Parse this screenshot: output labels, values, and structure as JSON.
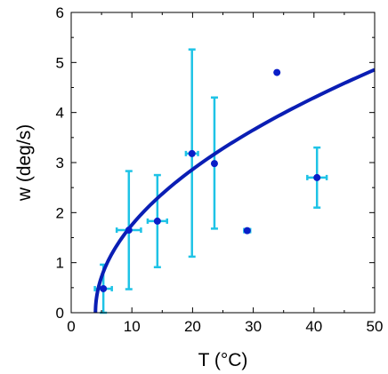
{
  "chart_data": {
    "type": "scatter",
    "xlabel": "T (°C)",
    "ylabel": "w (deg/s)",
    "xlim": [
      0,
      50
    ],
    "ylim": [
      0,
      6
    ],
    "x_ticks": [
      0,
      10,
      20,
      30,
      40,
      50
    ],
    "y_ticks": [
      0,
      1,
      2,
      3,
      4,
      5,
      6
    ],
    "grid": false,
    "legend": "none",
    "points": [
      {
        "x": 5.3,
        "y": 0.48,
        "x_err": 1.4,
        "y_err_low": 0.48,
        "y_err_high": 0.48
      },
      {
        "x": 9.5,
        "y": 1.65,
        "x_err": 2.0,
        "y_err_low": 1.18,
        "y_err_high": 1.18
      },
      {
        "x": 14.2,
        "y": 1.83,
        "x_err": 1.6,
        "y_err_low": 0.92,
        "y_err_high": 0.92
      },
      {
        "x": 19.9,
        "y": 3.18,
        "x_err": 1.0,
        "y_err_low": 2.06,
        "y_err_high": 2.08
      },
      {
        "x": 23.6,
        "y": 2.98,
        "x_err": 0,
        "y_err_low": 1.3,
        "y_err_high": 1.32
      },
      {
        "x": 29.0,
        "y": 1.64,
        "x_err": 0.5,
        "y_err_low": 0.03,
        "y_err_high": 0.03
      },
      {
        "x": 33.9,
        "y": 4.8,
        "x_err": 0,
        "y_err_low": 0,
        "y_err_high": 0
      },
      {
        "x": 40.5,
        "y": 2.7,
        "x_err": 1.6,
        "y_err_low": 0.6,
        "y_err_high": 0.6
      }
    ],
    "fit_curve": {
      "model": "w = a * (T - T0)^0.5",
      "a": 0.716,
      "T0": 4.0,
      "x_range": [
        4.0,
        50
      ]
    },
    "colors": {
      "points": "#0a1ec8",
      "error_bars": "#1ec3e6",
      "fit_curve": "#0a1eb4",
      "axes": "#000000"
    }
  }
}
